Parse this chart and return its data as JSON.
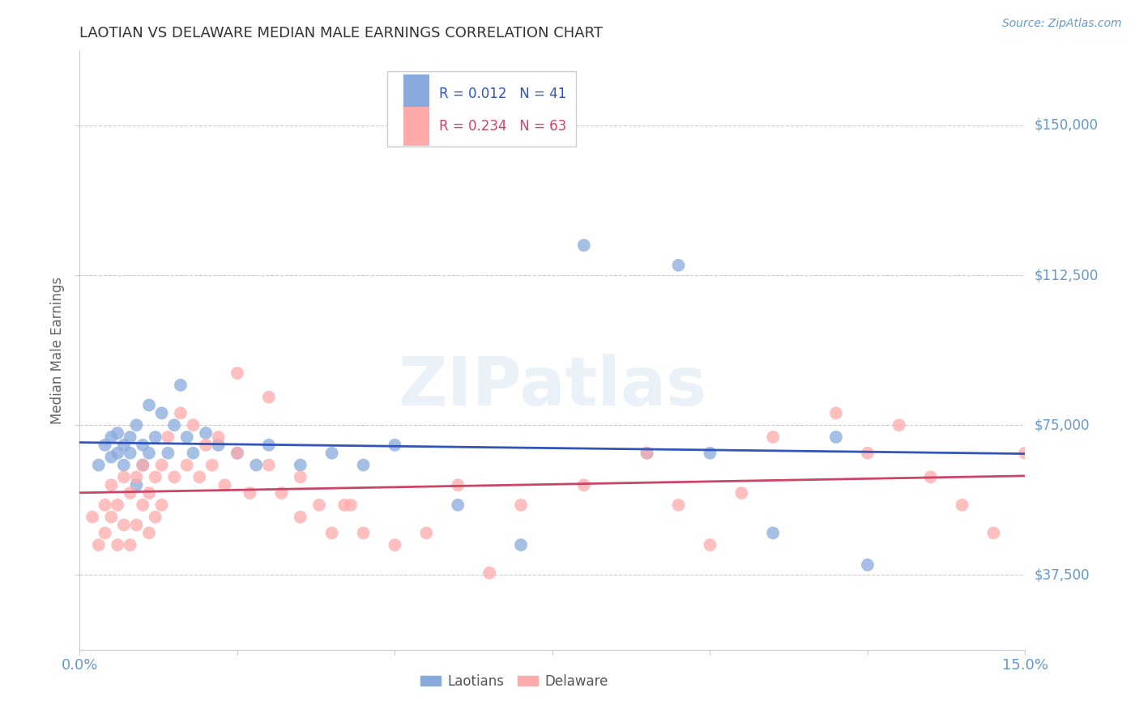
{
  "title": "LAOTIAN VS DELAWARE MEDIAN MALE EARNINGS CORRELATION CHART",
  "source": "Source: ZipAtlas.com",
  "ylabel": "Median Male Earnings",
  "xlim": [
    0.0,
    0.15
  ],
  "ylim": [
    18750,
    168750
  ],
  "yticks": [
    37500,
    75000,
    112500,
    150000
  ],
  "ytick_labels": [
    "$37,500",
    "$75,000",
    "$112,500",
    "$150,000"
  ],
  "xticks": [
    0.0,
    0.025,
    0.05,
    0.075,
    0.1,
    0.125,
    0.15
  ],
  "blue_color": "#88AADD",
  "pink_color": "#FFAAAA",
  "blue_line_color": "#3355BB",
  "pink_line_color": "#CC4466",
  "axis_color": "#6699CC",
  "title_color": "#333333",
  "legend_r1": "R = 0.012",
  "legend_n1": "N = 41",
  "legend_r2": "R = 0.234",
  "legend_n2": "N = 63",
  "legend_label1": "Laotians",
  "legend_label2": "Delaware",
  "watermark": "ZIPatlas",
  "background_color": "#FFFFFF",
  "blue_scatter_x": [
    0.003,
    0.004,
    0.005,
    0.005,
    0.006,
    0.006,
    0.007,
    0.007,
    0.008,
    0.008,
    0.009,
    0.009,
    0.01,
    0.01,
    0.011,
    0.011,
    0.012,
    0.013,
    0.014,
    0.015,
    0.016,
    0.017,
    0.018,
    0.02,
    0.022,
    0.025,
    0.028,
    0.03,
    0.035,
    0.04,
    0.045,
    0.05,
    0.06,
    0.07,
    0.08,
    0.09,
    0.095,
    0.1,
    0.11,
    0.12,
    0.125
  ],
  "blue_scatter_y": [
    65000,
    70000,
    67000,
    72000,
    68000,
    73000,
    65000,
    70000,
    72000,
    68000,
    60000,
    75000,
    65000,
    70000,
    80000,
    68000,
    72000,
    78000,
    68000,
    75000,
    85000,
    72000,
    68000,
    73000,
    70000,
    68000,
    65000,
    70000,
    65000,
    68000,
    65000,
    70000,
    55000,
    45000,
    120000,
    68000,
    115000,
    68000,
    48000,
    72000,
    40000
  ],
  "pink_scatter_x": [
    0.002,
    0.003,
    0.004,
    0.004,
    0.005,
    0.005,
    0.006,
    0.006,
    0.007,
    0.007,
    0.008,
    0.008,
    0.009,
    0.009,
    0.01,
    0.01,
    0.011,
    0.011,
    0.012,
    0.012,
    0.013,
    0.013,
    0.014,
    0.015,
    0.016,
    0.017,
    0.018,
    0.019,
    0.02,
    0.021,
    0.022,
    0.023,
    0.025,
    0.027,
    0.03,
    0.032,
    0.035,
    0.038,
    0.04,
    0.043,
    0.045,
    0.05,
    0.055,
    0.06,
    0.065,
    0.07,
    0.08,
    0.09,
    0.095,
    0.1,
    0.105,
    0.11,
    0.12,
    0.125,
    0.13,
    0.135,
    0.14,
    0.145,
    0.15,
    0.025,
    0.03,
    0.035,
    0.042
  ],
  "pink_scatter_y": [
    52000,
    45000,
    55000,
    48000,
    60000,
    52000,
    55000,
    45000,
    62000,
    50000,
    58000,
    45000,
    62000,
    50000,
    65000,
    55000,
    58000,
    48000,
    62000,
    52000,
    65000,
    55000,
    72000,
    62000,
    78000,
    65000,
    75000,
    62000,
    70000,
    65000,
    72000,
    60000,
    68000,
    58000,
    65000,
    58000,
    62000,
    55000,
    48000,
    55000,
    48000,
    45000,
    48000,
    60000,
    38000,
    55000,
    60000,
    68000,
    55000,
    45000,
    58000,
    72000,
    78000,
    68000,
    75000,
    62000,
    55000,
    48000,
    68000,
    88000,
    82000,
    52000,
    55000
  ]
}
